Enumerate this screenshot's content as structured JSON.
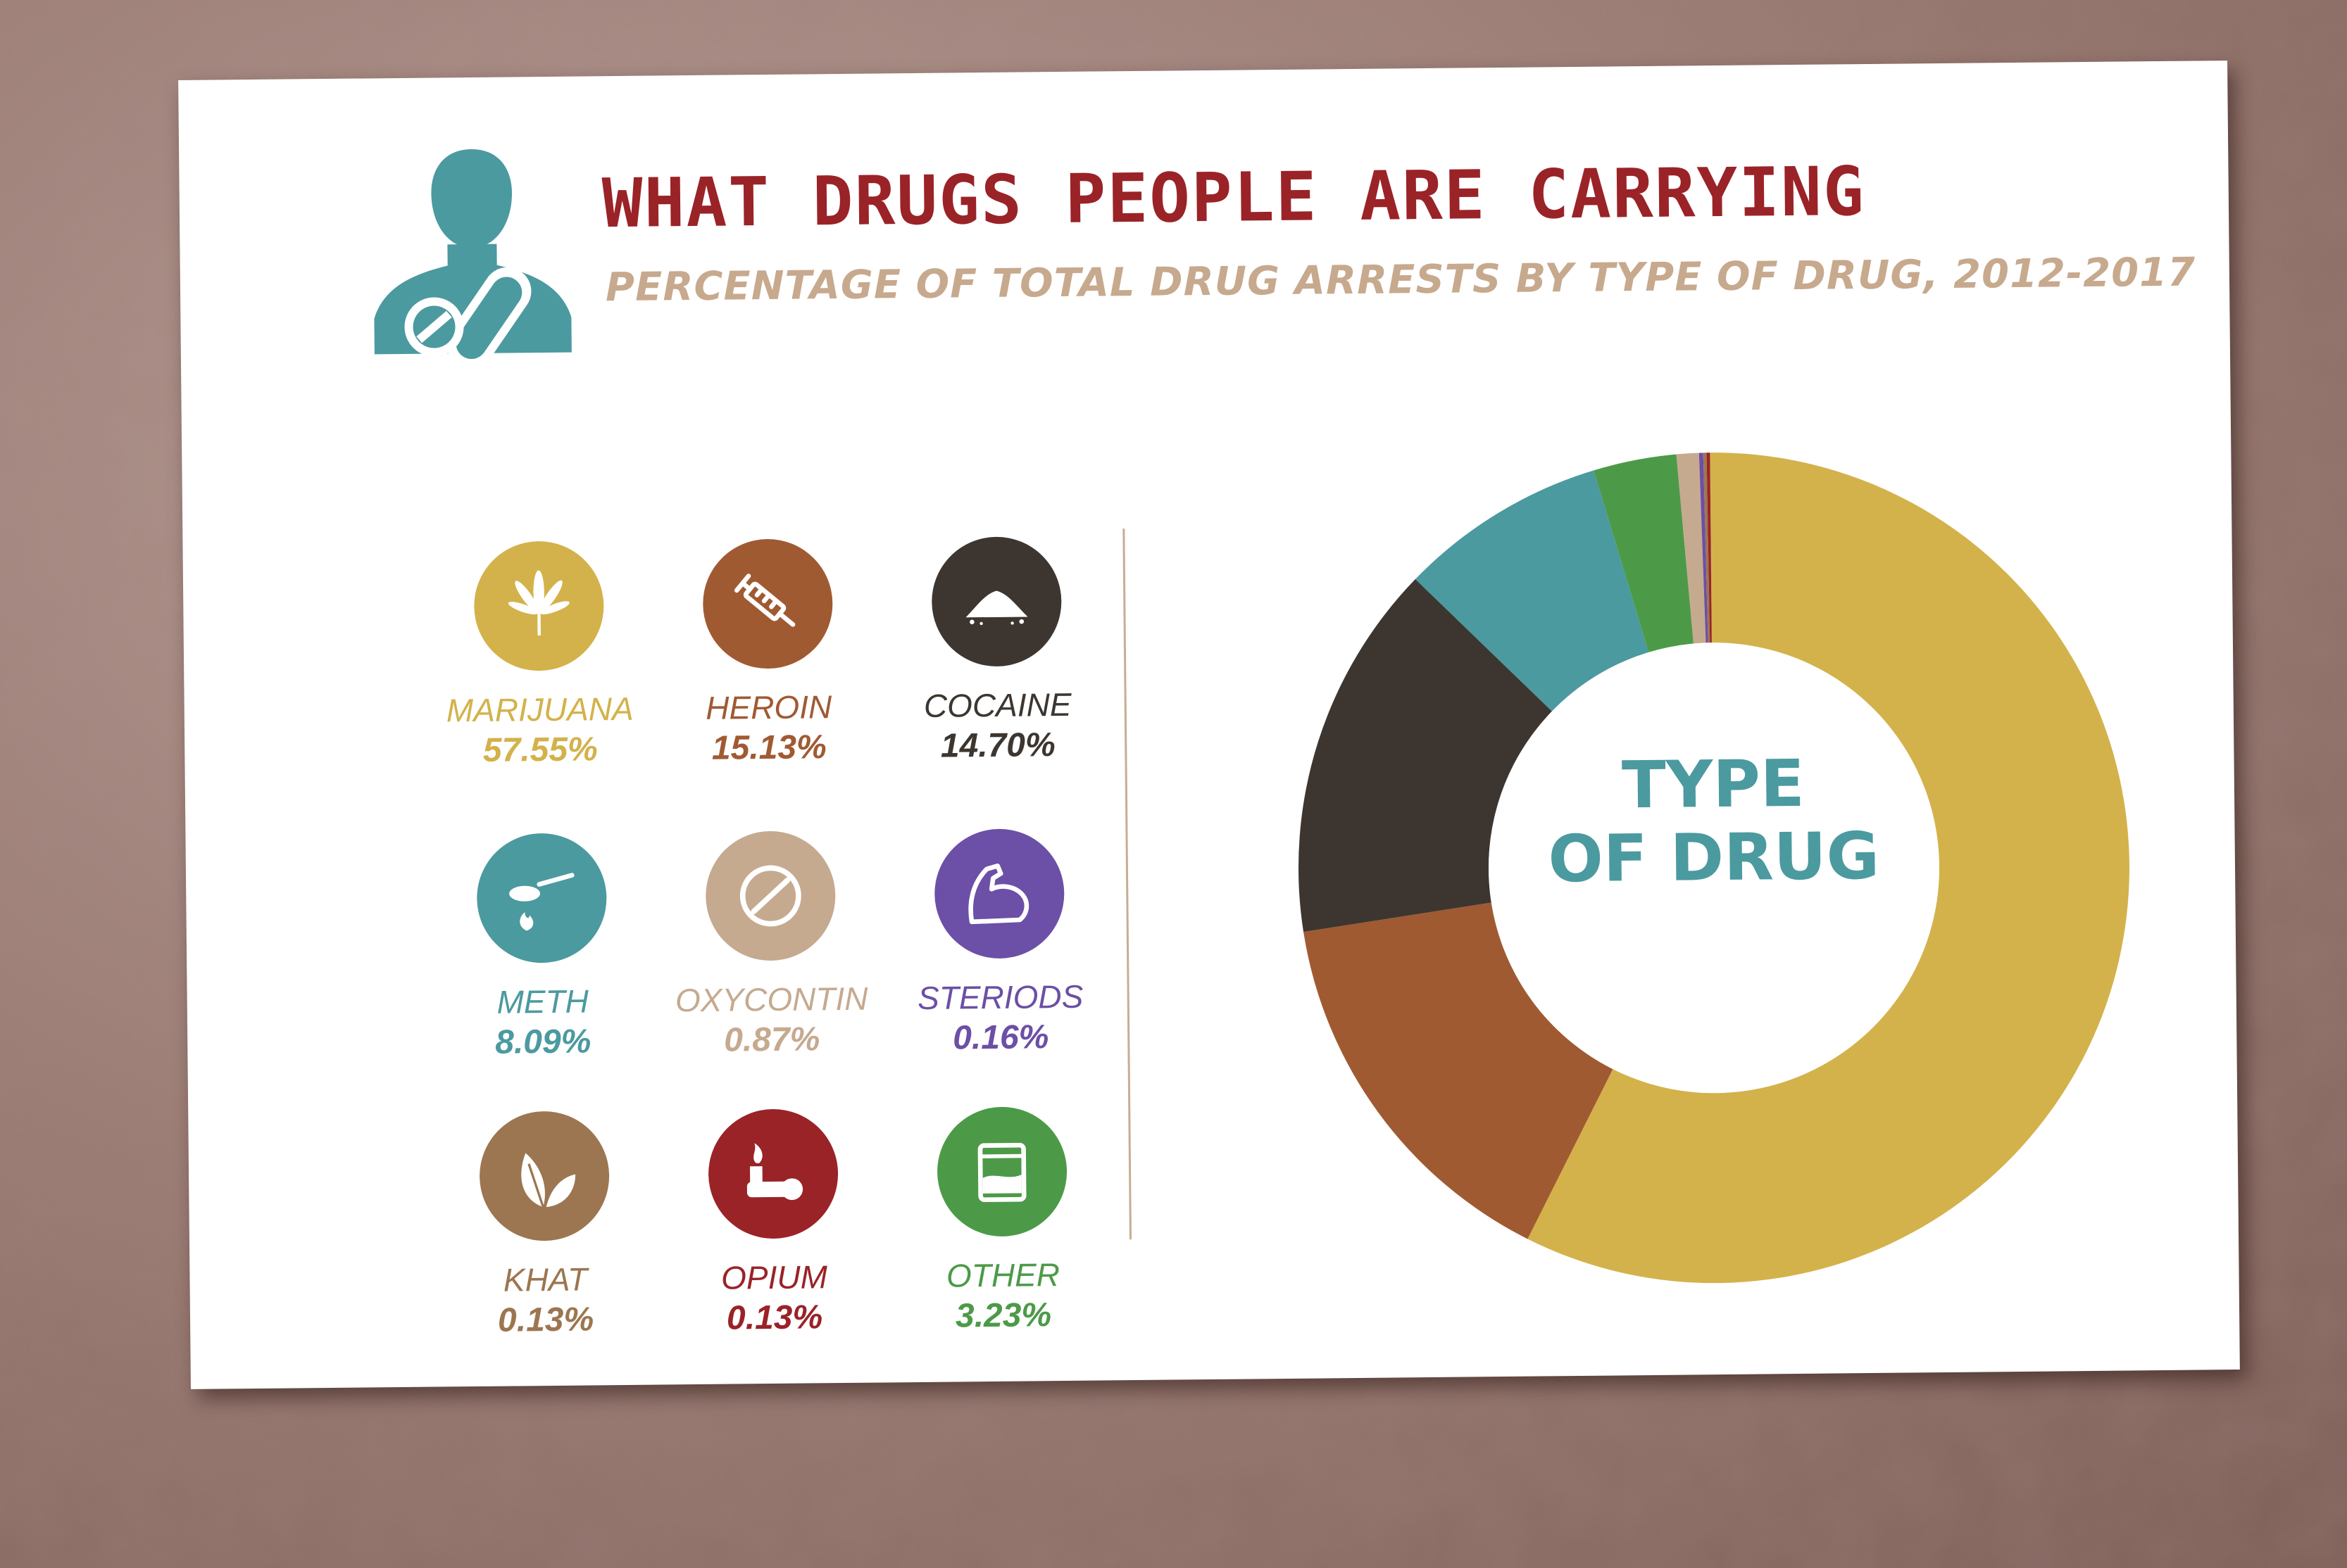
{
  "header": {
    "title": "WHAT DRUGS PEOPLE ARE CARRYING",
    "subtitle": "PERCENTAGE OF TOTAL DRUG ARRESTS BY TYPE OF DRUG, 2012-2017",
    "icon": "person-with-pill-icon"
  },
  "legend": [
    {
      "label": "MARIJUANA",
      "pct_text": "57.55%",
      "color": "#d3b24b",
      "icon": "cannabis-leaf-icon"
    },
    {
      "label": "HEROIN",
      "pct_text": "15.13%",
      "color": "#a05a32",
      "icon": "syringe-icon"
    },
    {
      "label": "COCAINE",
      "pct_text": "14.70%",
      "color": "#3d3630",
      "icon": "powder-pile-icon"
    },
    {
      "label": "METH",
      "pct_text": "8.09%",
      "color": "#4b9aa0",
      "icon": "spoon-flame-icon"
    },
    {
      "label": "OXYCONTIN",
      "pct_text": "0.87%",
      "color": "#c5aa90",
      "icon": "pill-icon"
    },
    {
      "label": "STERIODS",
      "pct_text": "0.16%",
      "color": "#6c4fa6",
      "icon": "flexed-arm-icon"
    },
    {
      "label": "KHAT",
      "pct_text": "0.13%",
      "color": "#9c7650",
      "icon": "leaves-icon"
    },
    {
      "label": "OPIUM",
      "pct_text": "0.13%",
      "color": "#9a2328",
      "icon": "opium-pipe-icon"
    },
    {
      "label": "OTHER",
      "pct_text": "3.23%",
      "color": "#4c9a48",
      "icon": "baggie-icon"
    }
  ],
  "chart_data": {
    "type": "pie",
    "donut": true,
    "center_label": "TYPE OF DRUG",
    "categories": [
      "MARIJUANA",
      "HEROIN",
      "COCAINE",
      "METH",
      "OTHER",
      "OXYCONTIN",
      "STERIODS",
      "KHAT",
      "OPIUM"
    ],
    "values": [
      57.55,
      15.13,
      14.7,
      8.09,
      3.23,
      0.87,
      0.16,
      0.13,
      0.13
    ],
    "colors": [
      "#d3b24b",
      "#a05a32",
      "#3d3630",
      "#4b9aa0",
      "#4c9a48",
      "#c5aa90",
      "#6c4fa6",
      "#9c7650",
      "#9a2328"
    ],
    "start_angle_deg": 0,
    "direction": "clockwise"
  }
}
